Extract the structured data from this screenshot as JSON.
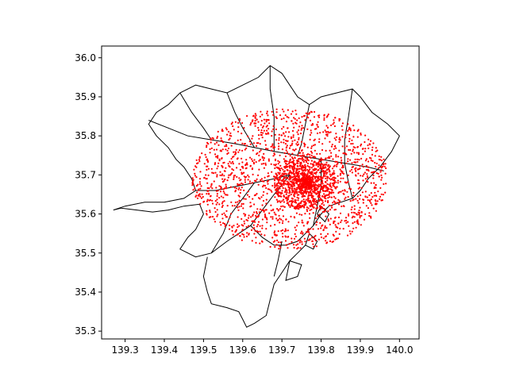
{
  "chart_data": {
    "type": "scatter",
    "title": "",
    "xlabel": "",
    "ylabel": "",
    "xlim": [
      139.24,
      140.05
    ],
    "ylim": [
      35.28,
      36.03
    ],
    "x_ticks": [
      "139.3",
      "139.4",
      "139.5",
      "139.6",
      "139.7",
      "139.8",
      "139.9",
      "140.0"
    ],
    "y_ticks": [
      "35.3",
      "35.4",
      "35.5",
      "35.6",
      "35.7",
      "35.8",
      "35.9",
      "36.0"
    ],
    "grid": false,
    "legend": "none",
    "marker_color": "#ff0000",
    "outline_color": "#000000",
    "point_cloud": {
      "center": [
        139.72,
        35.69
      ],
      "radius_deg": 0.25,
      "dense_core_center": [
        139.76,
        35.68
      ],
      "approx_point_count": 9000
    },
    "boundaries": [
      [
        [
          139.27,
          35.61
        ],
        [
          139.29,
          35.615
        ],
        [
          139.33,
          35.61
        ],
        [
          139.37,
          35.605
        ],
        [
          139.41,
          35.61
        ],
        [
          139.45,
          35.62
        ],
        [
          139.49,
          35.625
        ],
        [
          139.5,
          35.6
        ],
        [
          139.48,
          35.56
        ],
        [
          139.46,
          35.54
        ],
        [
          139.44,
          35.51
        ],
        [
          139.48,
          35.49
        ],
        [
          139.52,
          35.5
        ],
        [
          139.56,
          35.53
        ],
        [
          139.59,
          35.55
        ],
        [
          139.62,
          35.57
        ],
        [
          139.65,
          35.54
        ],
        [
          139.68,
          35.52
        ],
        [
          139.71,
          35.52
        ],
        [
          139.74,
          35.53
        ],
        [
          139.76,
          35.55
        ],
        [
          139.78,
          35.57
        ],
        [
          139.8,
          35.6
        ],
        [
          139.82,
          35.62
        ],
        [
          139.85,
          35.63
        ],
        [
          139.88,
          35.64
        ],
        [
          139.9,
          35.66
        ],
        [
          139.92,
          35.69
        ],
        [
          139.95,
          35.72
        ],
        [
          139.98,
          35.76
        ],
        [
          140.0,
          35.8
        ],
        [
          139.97,
          35.83
        ],
        [
          139.93,
          35.86
        ],
        [
          139.9,
          35.9
        ],
        [
          139.88,
          35.92
        ],
        [
          139.84,
          35.91
        ],
        [
          139.8,
          35.9
        ],
        [
          139.77,
          35.88
        ],
        [
          139.74,
          35.9
        ],
        [
          139.72,
          35.93
        ],
        [
          139.7,
          35.96
        ],
        [
          139.67,
          35.98
        ],
        [
          139.64,
          35.95
        ],
        [
          139.6,
          35.93
        ],
        [
          139.56,
          35.91
        ],
        [
          139.52,
          35.92
        ],
        [
          139.48,
          35.93
        ],
        [
          139.44,
          35.91
        ],
        [
          139.41,
          35.88
        ],
        [
          139.38,
          35.86
        ],
        [
          139.36,
          35.83
        ],
        [
          139.38,
          35.8
        ],
        [
          139.41,
          35.77
        ],
        [
          139.43,
          35.74
        ],
        [
          139.45,
          35.72
        ],
        [
          139.47,
          35.69
        ],
        [
          139.48,
          35.66
        ],
        [
          139.45,
          35.64
        ],
        [
          139.4,
          35.63
        ],
        [
          139.35,
          35.63
        ],
        [
          139.3,
          35.62
        ],
        [
          139.27,
          35.61
        ]
      ],
      [
        [
          139.51,
          35.49
        ],
        [
          139.5,
          35.44
        ],
        [
          139.51,
          35.4
        ],
        [
          139.52,
          35.37
        ],
        [
          139.56,
          35.36
        ],
        [
          139.59,
          35.35
        ],
        [
          139.6,
          35.33
        ],
        [
          139.61,
          35.31
        ],
        [
          139.63,
          35.32
        ],
        [
          139.66,
          35.34
        ],
        [
          139.67,
          35.38
        ],
        [
          139.68,
          35.42
        ],
        [
          139.7,
          35.45
        ],
        [
          139.72,
          35.48
        ],
        [
          139.74,
          35.5
        ],
        [
          139.76,
          35.52
        ]
      ],
      [
        [
          139.36,
          35.84
        ],
        [
          139.41,
          35.82
        ],
        [
          139.46,
          35.8
        ],
        [
          139.52,
          35.79
        ],
        [
          139.58,
          35.78
        ],
        [
          139.63,
          35.77
        ],
        [
          139.68,
          35.76
        ],
        [
          139.74,
          35.75
        ],
        [
          139.8,
          35.74
        ],
        [
          139.86,
          35.73
        ],
        [
          139.92,
          35.72
        ],
        [
          139.96,
          35.71
        ]
      ],
      [
        [
          139.48,
          35.66
        ],
        [
          139.53,
          35.66
        ],
        [
          139.58,
          35.67
        ],
        [
          139.63,
          35.68
        ],
        [
          139.68,
          35.69
        ],
        [
          139.72,
          35.7
        ]
      ],
      [
        [
          139.44,
          35.91
        ],
        [
          139.47,
          35.86
        ],
        [
          139.5,
          35.82
        ],
        [
          139.52,
          35.79
        ]
      ],
      [
        [
          139.56,
          35.91
        ],
        [
          139.58,
          35.86
        ],
        [
          139.6,
          35.82
        ],
        [
          139.63,
          35.77
        ]
      ],
      [
        [
          139.67,
          35.98
        ],
        [
          139.67,
          35.92
        ],
        [
          139.68,
          35.85
        ],
        [
          139.68,
          35.76
        ]
      ],
      [
        [
          139.77,
          35.88
        ],
        [
          139.76,
          35.83
        ],
        [
          139.75,
          35.78
        ],
        [
          139.74,
          35.75
        ]
      ],
      [
        [
          139.88,
          35.92
        ],
        [
          139.87,
          35.85
        ],
        [
          139.86,
          35.79
        ],
        [
          139.86,
          35.73
        ]
      ],
      [
        [
          139.52,
          35.5
        ],
        [
          139.55,
          35.55
        ],
        [
          139.57,
          35.6
        ],
        [
          139.6,
          35.64
        ],
        [
          139.63,
          35.68
        ]
      ],
      [
        [
          139.62,
          35.57
        ],
        [
          139.65,
          35.61
        ],
        [
          139.68,
          35.65
        ],
        [
          139.72,
          35.7
        ]
      ],
      [
        [
          139.78,
          35.57
        ],
        [
          139.79,
          35.62
        ],
        [
          139.8,
          35.67
        ],
        [
          139.8,
          35.74
        ]
      ],
      [
        [
          139.88,
          35.64
        ],
        [
          139.87,
          35.68
        ],
        [
          139.86,
          35.73
        ]
      ],
      [
        [
          139.7,
          35.53
        ],
        [
          139.69,
          35.48
        ],
        [
          139.68,
          35.44
        ]
      ],
      [
        [
          139.72,
          35.48
        ],
        [
          139.75,
          35.47
        ],
        [
          139.74,
          35.44
        ],
        [
          139.71,
          35.43
        ],
        [
          139.72,
          35.48
        ]
      ],
      [
        [
          139.77,
          35.55
        ],
        [
          139.79,
          35.53
        ],
        [
          139.78,
          35.51
        ],
        [
          139.76,
          35.52
        ],
        [
          139.77,
          35.55
        ]
      ],
      [
        [
          139.8,
          35.62
        ],
        [
          139.82,
          35.6
        ],
        [
          139.81,
          35.58
        ],
        [
          139.79,
          35.6
        ],
        [
          139.8,
          35.62
        ]
      ]
    ]
  }
}
